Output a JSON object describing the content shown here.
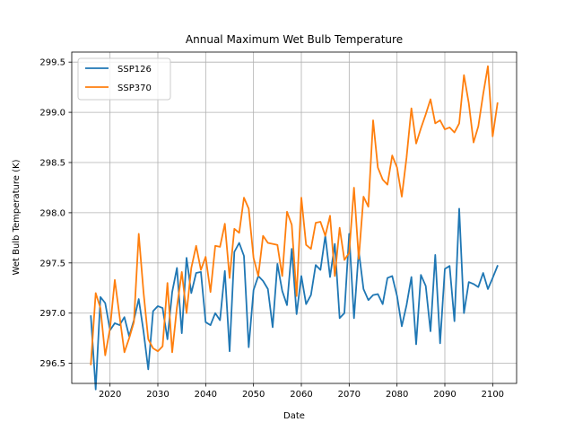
{
  "chart_data": {
    "type": "line",
    "title": "Annual Maximum Wet Bulb Temperature",
    "xlabel": "Date",
    "ylabel": "Wet Bulb Temperature (K)",
    "x": [
      2016,
      2017,
      2018,
      2019,
      2020,
      2021,
      2022,
      2023,
      2024,
      2025,
      2026,
      2027,
      2028,
      2029,
      2030,
      2031,
      2032,
      2033,
      2034,
      2035,
      2036,
      2037,
      2038,
      2039,
      2040,
      2041,
      2042,
      2043,
      2044,
      2045,
      2046,
      2047,
      2048,
      2049,
      2050,
      2051,
      2052,
      2053,
      2054,
      2055,
      2056,
      2057,
      2058,
      2059,
      2060,
      2061,
      2062,
      2063,
      2064,
      2065,
      2066,
      2067,
      2068,
      2069,
      2070,
      2071,
      2072,
      2073,
      2074,
      2075,
      2076,
      2077,
      2078,
      2079,
      2080,
      2081,
      2082,
      2083,
      2084,
      2085,
      2086,
      2087,
      2088,
      2089,
      2090,
      2091,
      2092,
      2093,
      2094,
      2095,
      2096,
      2097,
      2098,
      2099,
      2100,
      2101
    ],
    "xlim": [
      2012,
      2105
    ],
    "ylim": [
      296.3,
      299.6
    ],
    "xticks": [
      2020,
      2030,
      2040,
      2050,
      2060,
      2070,
      2080,
      2090,
      2100
    ],
    "yticks": [
      296.5,
      297.0,
      297.5,
      298.0,
      298.5,
      299.0,
      299.5
    ],
    "xtick_labels": [
      "2020",
      "2030",
      "2040",
      "2050",
      "2060",
      "2070",
      "2080",
      "2090",
      "2100"
    ],
    "ytick_labels": [
      "296.5",
      "297.0",
      "297.5",
      "298.0",
      "298.5",
      "299.0",
      "299.5"
    ],
    "grid": true,
    "legend_position": "top-left",
    "series": [
      {
        "name": "SSP126",
        "color": "#1f77b4",
        "values": [
          296.97,
          296.24,
          297.16,
          297.1,
          296.83,
          296.9,
          296.88,
          296.96,
          296.77,
          296.93,
          297.14,
          296.82,
          296.44,
          297.02,
          297.07,
          297.05,
          296.74,
          297.21,
          297.45,
          296.8,
          297.55,
          297.2,
          297.4,
          297.41,
          296.91,
          296.88,
          297.0,
          296.93,
          297.42,
          296.62,
          297.61,
          297.7,
          297.57,
          296.66,
          297.23,
          297.37,
          297.32,
          297.24,
          296.86,
          297.49,
          297.22,
          297.08,
          297.64,
          296.99,
          297.37,
          297.09,
          297.18,
          297.48,
          297.43,
          297.77,
          297.36,
          297.69,
          296.95,
          297.0,
          297.79,
          296.95,
          297.62,
          297.24,
          297.13,
          297.18,
          297.19,
          297.09,
          297.35,
          297.37,
          297.17,
          296.87,
          297.08,
          297.36,
          296.69,
          297.38,
          297.27,
          296.82,
          297.58,
          296.7,
          297.44,
          297.47,
          296.92,
          298.04,
          297.0,
          297.31,
          297.29,
          297.26,
          297.4,
          297.24,
          297.35,
          297.47
        ]
      },
      {
        "name": "SSP370",
        "color": "#ff7f0e",
        "values": [
          296.49,
          297.2,
          297.05,
          296.58,
          296.85,
          297.33,
          296.97,
          296.61,
          296.75,
          296.91,
          297.79,
          297.21,
          296.74,
          296.65,
          296.62,
          296.67,
          297.3,
          296.61,
          297.06,
          297.41,
          297.0,
          297.45,
          297.67,
          297.43,
          297.56,
          297.21,
          297.67,
          297.66,
          297.89,
          297.35,
          297.84,
          297.8,
          298.15,
          298.04,
          297.55,
          297.37,
          297.77,
          297.7,
          297.69,
          297.68,
          297.37,
          298.01,
          297.88,
          297.17,
          298.15,
          297.68,
          297.64,
          297.9,
          297.91,
          297.77,
          297.97,
          297.37,
          297.85,
          297.53,
          297.6,
          298.25,
          297.54,
          298.16,
          298.06,
          298.92,
          298.45,
          298.33,
          298.28,
          298.57,
          298.45,
          298.16,
          298.55,
          299.04,
          298.69,
          298.84,
          298.98,
          299.13,
          298.89,
          298.92,
          298.83,
          298.85,
          298.8,
          298.89,
          299.37,
          299.09,
          298.7,
          298.86,
          299.18,
          299.46,
          298.76,
          299.09
        ]
      }
    ]
  }
}
